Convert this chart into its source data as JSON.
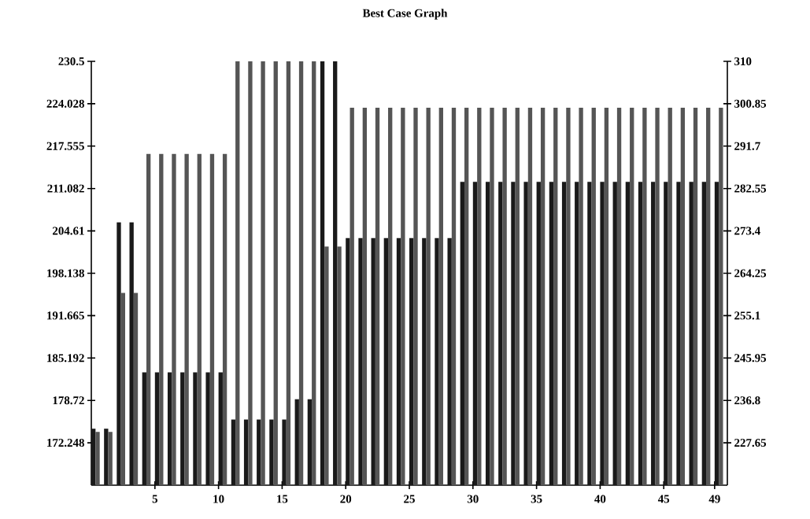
{
  "chart_data": {
    "type": "bar",
    "title": "Best Case Graph",
    "x": [
      0,
      1,
      2,
      3,
      4,
      5,
      6,
      7,
      8,
      9,
      10,
      11,
      12,
      13,
      14,
      15,
      16,
      17,
      18,
      19,
      20,
      21,
      22,
      23,
      24,
      25,
      26,
      27,
      28,
      29,
      30,
      31,
      32,
      33,
      34,
      35,
      36,
      37,
      38,
      39,
      40,
      41,
      42,
      43,
      44,
      45,
      46,
      47,
      48,
      49
    ],
    "xlim": [
      0,
      50
    ],
    "xticks": [
      5,
      10,
      15,
      20,
      25,
      30,
      35,
      40,
      45,
      49
    ],
    "ylim": [
      165.776,
      230.5
    ],
    "yticks": [
      172.248,
      178.72,
      185.192,
      191.665,
      198.138,
      204.61,
      211.082,
      217.555,
      224.028,
      230.5
    ],
    "y2lim": [
      218.5,
      310
    ],
    "y2ticks": [
      227.65,
      236.8,
      245.95,
      255.1,
      264.25,
      273.4,
      282.55,
      291.7,
      300.85,
      310
    ],
    "series": [
      {
        "color": "#1a1a1a",
        "values": [
          174.4,
          174.4,
          205.9,
          205.9,
          183.0,
          183.0,
          183.0,
          183.0,
          183.0,
          183.0,
          183.0,
          175.8,
          175.8,
          175.8,
          175.8,
          175.8,
          178.9,
          178.9,
          230.5,
          230.5,
          203.5,
          203.5,
          203.5,
          203.5,
          203.5,
          203.5,
          203.5,
          203.5,
          203.5,
          212.1,
          212.1,
          212.1,
          212.1,
          212.1,
          212.1,
          212.1,
          212.1,
          212.1,
          212.1,
          212.1,
          212.1,
          212.1,
          212.1,
          212.1,
          212.1,
          212.1,
          212.1,
          212.1,
          212.1,
          212.1
        ]
      },
      {
        "color": "#555555",
        "axis": "y2",
        "values": [
          230,
          230,
          260,
          260,
          290,
          290,
          290,
          290,
          290,
          290,
          290,
          310,
          310,
          310,
          310,
          310,
          310,
          310,
          270,
          270,
          300,
          300,
          300,
          300,
          300,
          300,
          300,
          300,
          300,
          300,
          300,
          300,
          300,
          300,
          300,
          300,
          300,
          300,
          300,
          300,
          300,
          300,
          300,
          300,
          300,
          300,
          300,
          300,
          300,
          300
        ]
      }
    ]
  }
}
